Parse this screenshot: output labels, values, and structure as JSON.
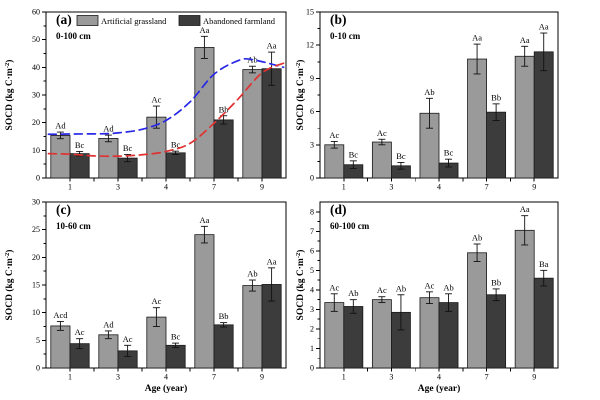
{
  "figure": {
    "background": "#ffffff",
    "y_axis_label": "SOCD (kg C·m⁻²)",
    "y_axis_label_parts": {
      "main": "SOCD (kg C·m",
      "sup": "-2",
      "end": ")"
    },
    "x_axis_label": "Age (year)",
    "legend": [
      {
        "label": "Artificial grassland",
        "color": "#9a9a9a"
      },
      {
        "label": "Abandoned farmland",
        "color": "#3c3c3c"
      }
    ],
    "categories": [
      "1",
      "3",
      "4",
      "7",
      "9"
    ],
    "colors": {
      "artificial_grassland": "#9a9a9a",
      "abandoned_farmland": "#3c3c3c",
      "bar_outline": "#1a1a1a",
      "error_bar": "#111111",
      "frame": "#000000",
      "fit_curve_blue": "#2828e6",
      "fit_curve_red": "#e03232"
    }
  },
  "chart_data": [
    {
      "type": "bar",
      "panel": "(a)",
      "depth_label": "0-100 cm",
      "categories": [
        "1",
        "3",
        "4",
        "7",
        "9"
      ],
      "xlabel": "",
      "ylabel": "SOCD (kg C·m⁻²)",
      "ylim": [
        0,
        60
      ],
      "ytick_step": 10,
      "grid": false,
      "legend_position": "top-inside",
      "series": [
        {
          "name": "Artificial grassland",
          "color": "#9a9a9a",
          "values": [
            15.4,
            14.3,
            22.0,
            47.2,
            39.2
          ],
          "errors": [
            1.2,
            1.2,
            4.0,
            4.0,
            1.2
          ],
          "labels": [
            "Ad",
            "Ad",
            "Ac",
            "Aa",
            "Ab"
          ]
        },
        {
          "name": "Abandoned farmland",
          "color": "#3c3c3c",
          "values": [
            8.8,
            7.2,
            9.1,
            21.0,
            39.5
          ],
          "errors": [
            0.8,
            1.3,
            0.6,
            1.5,
            6.0
          ],
          "labels": [
            "Bc",
            "Bc",
            "Bc",
            "Bb",
            "Aa"
          ]
        }
      ],
      "fit_curves": [
        {
          "name": "artificial-grassland-fit",
          "color": "#2828e6",
          "style": "dashed",
          "points": [
            [
              -0.45,
              15.8
            ],
            [
              0,
              15.9
            ],
            [
              0.7,
              16.0
            ],
            [
              1,
              16.3
            ],
            [
              1.5,
              17.6
            ],
            [
              2,
              20.8
            ],
            [
              2.5,
              27.5
            ],
            [
              3,
              37.5
            ],
            [
              3.5,
              42.4
            ],
            [
              3.8,
              42.8
            ],
            [
              4.45,
              40.0
            ]
          ]
        },
        {
          "name": "abandoned-farmland-fit",
          "color": "#e03232",
          "style": "dashed",
          "points": [
            [
              -0.45,
              8.8
            ],
            [
              0,
              8.6
            ],
            [
              0.5,
              8.0
            ],
            [
              1,
              7.9
            ],
            [
              1.5,
              8.4
            ],
            [
              2,
              9.6
            ],
            [
              2.5,
              12.5
            ],
            [
              3,
              19.8
            ],
            [
              3.5,
              28.5
            ],
            [
              4,
              38.0
            ],
            [
              4.45,
              41.5
            ]
          ]
        }
      ]
    },
    {
      "type": "bar",
      "panel": "(b)",
      "depth_label": "0-10 cm",
      "categories": [
        "1",
        "3",
        "4",
        "7",
        "9"
      ],
      "xlabel": "",
      "ylabel": "SOCD (kg C·m⁻²)",
      "ylim": [
        0,
        15
      ],
      "ytick_step": 3,
      "grid": false,
      "series": [
        {
          "name": "Artificial grassland",
          "color": "#9a9a9a",
          "values": [
            3.0,
            3.25,
            5.85,
            10.75,
            11.0
          ],
          "errors": [
            0.3,
            0.25,
            1.35,
            1.35,
            0.9
          ],
          "labels": [
            "Ac",
            "Ac",
            "Ab",
            "Aa",
            "Aa"
          ]
        },
        {
          "name": "Abandoned farmland",
          "color": "#3c3c3c",
          "values": [
            1.2,
            1.1,
            1.35,
            5.95,
            11.4
          ],
          "errors": [
            0.35,
            0.3,
            0.35,
            0.75,
            1.7
          ],
          "labels": [
            "Bc",
            "Bc",
            "Bc",
            "Bb",
            "Aa"
          ]
        }
      ]
    },
    {
      "type": "bar",
      "panel": "(c)",
      "depth_label": "10-60 cm",
      "categories": [
        "1",
        "3",
        "4",
        "7",
        "9"
      ],
      "xlabel": "Age (year)",
      "ylabel": "SOCD (kg C·m⁻²)",
      "ylim": [
        0,
        30
      ],
      "ytick_step": 5,
      "grid": false,
      "series": [
        {
          "name": "Artificial grassland",
          "color": "#9a9a9a",
          "values": [
            7.6,
            6.0,
            9.2,
            24.1,
            14.9
          ],
          "errors": [
            0.8,
            0.7,
            1.7,
            1.5,
            1.0
          ],
          "labels": [
            "Acd",
            "Ad",
            "Ac",
            "Aa",
            "Ab"
          ]
        },
        {
          "name": "Abandoned farmland",
          "color": "#3c3c3c",
          "values": [
            4.4,
            3.1,
            4.1,
            7.8,
            15.1
          ],
          "errors": [
            0.9,
            1.0,
            0.4,
            0.4,
            3.0
          ],
          "labels": [
            "Ac",
            "Ac",
            "Bc",
            "Bb",
            "Aa"
          ]
        }
      ]
    },
    {
      "type": "bar",
      "panel": "(d)",
      "depth_label": "60-100 cm",
      "categories": [
        "1",
        "3",
        "4",
        "7",
        "9"
      ],
      "xlabel": "Age (year)",
      "ylabel": "SOCD (kg C·m⁻²)",
      "ylim": [
        0,
        8.5
      ],
      "ytick_step": 1,
      "grid": false,
      "series": [
        {
          "name": "Artificial grassland",
          "color": "#9a9a9a",
          "values": [
            3.35,
            3.5,
            3.6,
            5.9,
            7.05
          ],
          "errors": [
            0.45,
            0.15,
            0.3,
            0.45,
            0.75
          ],
          "labels": [
            "Ac",
            "Ac",
            "Ac",
            "Ab",
            "Aa"
          ]
        },
        {
          "name": "Abandoned farmland",
          "color": "#3c3c3c",
          "values": [
            3.15,
            2.85,
            3.35,
            3.75,
            4.6
          ],
          "errors": [
            0.35,
            0.9,
            0.45,
            0.3,
            0.4
          ],
          "labels": [
            "Ab",
            "Ab",
            "Ab",
            "Bb",
            "Ba"
          ]
        }
      ]
    }
  ]
}
